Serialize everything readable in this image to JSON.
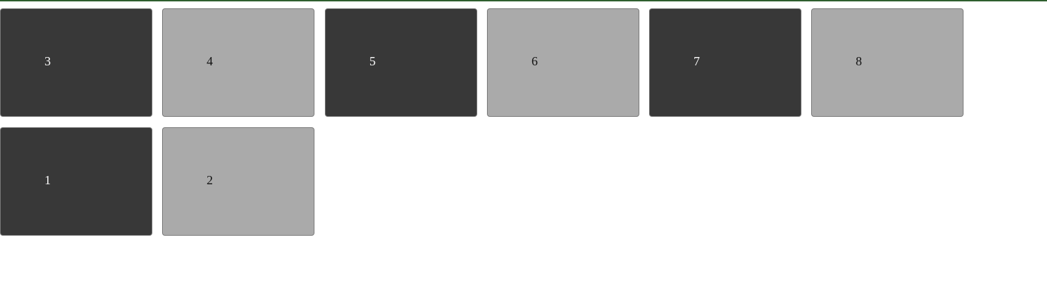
{
  "tiles": [
    {
      "label": "3",
      "shade": "dark"
    },
    {
      "label": "4",
      "shade": "light"
    },
    {
      "label": "5",
      "shade": "dark"
    },
    {
      "label": "6",
      "shade": "light"
    },
    {
      "label": "7",
      "shade": "dark"
    },
    {
      "label": "8",
      "shade": "light"
    },
    {
      "label": "1",
      "shade": "dark"
    },
    {
      "label": "2",
      "shade": "light"
    }
  ],
  "colors": {
    "top_bar": "#2e5e2e",
    "dark_tile": "#383838",
    "light_tile": "#aaaaaa",
    "border": "#7a7a7a"
  }
}
